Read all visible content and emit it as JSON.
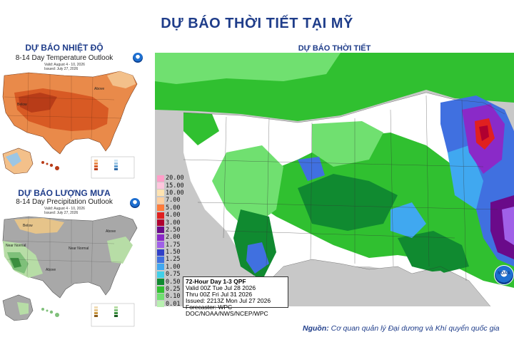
{
  "page": {
    "title": "DỰ BÁO THỜI TIẾT TẠI MỸ",
    "source_label": "Nguồn:",
    "source_text": "Cơ quan quản lý Đại dương và Khí quyển quốc gia"
  },
  "temp_panel": {
    "title": "DỰ BÁO NHIỆT ĐỘ",
    "subtitle": "8-14 Day Temperature Outlook",
    "valid": "Valid: August 4 - 10, 2026",
    "issued": "Issued: July 27, 2026",
    "region_label_1": "Above",
    "region_label_2": "Below",
    "colors": {
      "warm_light": "#f3c08a",
      "warm_mid": "#e98a4a",
      "warm_dark": "#d85a24",
      "warm_deep": "#b83c18",
      "cool": "#9cc6e4"
    }
  },
  "precip_panel": {
    "title": "DỰ BÁO LƯỢNG MƯA",
    "subtitle": "8-14 Day Precipitation Outlook",
    "valid": "Valid: August 4 - 10, 2026",
    "issued": "Issued: July 27, 2026",
    "labels": [
      "Below",
      "Above",
      "Near Normal",
      "Near Normal",
      "Above"
    ],
    "colors": {
      "dry": "#e6c48a",
      "gray": "#a8a8a8",
      "wet_light": "#b7dda6",
      "wet_mid": "#7fc07a",
      "wet_dark": "#3b8f3f"
    }
  },
  "main_map": {
    "title": "DỰ BÁO THỜI TIẾT",
    "legend": [
      {
        "label": "20.00",
        "color": "#ff9ec8"
      },
      {
        "label": "15.00",
        "color": "#ffc6dd"
      },
      {
        "label": "10.00",
        "color": "#ffe3b0"
      },
      {
        "label": "7.00",
        "color": "#ffd0a0"
      },
      {
        "label": "5.00",
        "color": "#ff7b3a"
      },
      {
        "label": "4.00",
        "color": "#e02020"
      },
      {
        "label": "3.00",
        "color": "#b00030"
      },
      {
        "label": "2.50",
        "color": "#6a0a8a"
      },
      {
        "label": "2.00",
        "color": "#8a2ac8"
      },
      {
        "label": "1.75",
        "color": "#a060e8"
      },
      {
        "label": "1.50",
        "color": "#3040c8"
      },
      {
        "label": "1.25",
        "color": "#4070e0"
      },
      {
        "label": "1.00",
        "color": "#40a8f0"
      },
      {
        "label": "0.75",
        "color": "#40d0e8"
      },
      {
        "label": "0.50",
        "color": "#108a30"
      },
      {
        "label": "0.25",
        "color": "#30c030"
      },
      {
        "label": "0.10",
        "color": "#70e070"
      },
      {
        "label": "0.01",
        "color": "#b8f0b0"
      }
    ],
    "qpf_title": "72-Hour Day 1-3 QPF",
    "qpf_valid": "Valid 00Z Tue Jul 28 2026",
    "qpf_thru": "Thru 00Z Fri Jul 31 2026",
    "qpf_issued": "Issued: 2213Z Mon Jul 27 2026",
    "qpf_forecaster": "Forecaster: WPC",
    "qpf_org": "DOC/NOAA/NWS/NCEP/WPC",
    "logo_text": "NOAA"
  }
}
